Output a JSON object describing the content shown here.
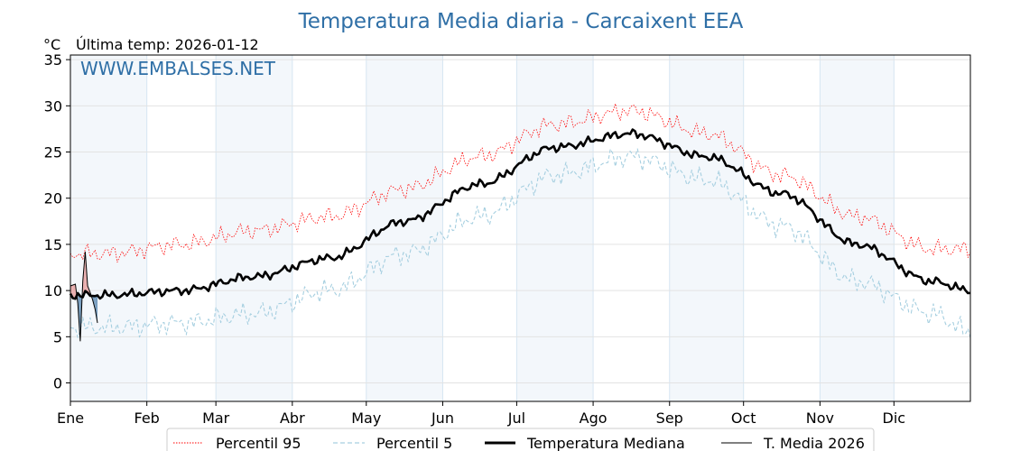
{
  "title": "Temperatura Media diaria - Carcaixent EEA",
  "unit_label": "°C",
  "last_temp_label": "Última temp: 2026-01-12",
  "watermark": "WWW.EMBALSES.NET",
  "chart_data": {
    "type": "line",
    "y_ticks": [
      0,
      5,
      10,
      15,
      20,
      25,
      30,
      35
    ],
    "ylim": [
      -2,
      35.5
    ],
    "x_tick_labels": [
      "Ene",
      "Feb",
      "Mar",
      "Abr",
      "May",
      "Jun",
      "Jul",
      "Ago",
      "Sep",
      "Oct",
      "Nov",
      "Dic"
    ],
    "month_start_days": [
      1,
      32,
      60,
      91,
      121,
      152,
      182,
      213,
      244,
      274,
      305,
      335
    ],
    "xlim": [
      1,
      366
    ],
    "grid": true,
    "legend_placement": "bottom-center",
    "series": [
      {
        "name": "Percentil 95",
        "color": "#ff0000",
        "style": "dotted",
        "monthly_values": [
          14.0,
          15.0,
          16.5,
          18.0,
          21.0,
          24.5,
          28.0,
          29.5,
          27.0,
          22.5,
          18.0,
          14.5,
          14.5
        ]
      },
      {
        "name": "Percentil 5",
        "color": "#a6cfe0",
        "style": "dashed",
        "monthly_values": [
          6.0,
          6.5,
          7.5,
          10.0,
          14.0,
          18.0,
          22.5,
          24.5,
          22.0,
          17.0,
          11.0,
          7.5,
          5.5
        ]
      },
      {
        "name": "Temperatura Mediana",
        "color": "#000000",
        "style": "thick",
        "monthly_values": [
          9.5,
          10.0,
          11.5,
          13.5,
          17.5,
          21.5,
          25.5,
          27.0,
          24.5,
          20.5,
          15.0,
          11.0,
          10.0
        ]
      },
      {
        "name": "T. Media 2026",
        "color": "#000000",
        "style": "thin",
        "days": [
          1,
          2,
          3,
          4,
          5,
          6,
          7,
          8,
          9,
          10,
          11,
          12
        ],
        "values": [
          10.5,
          10.6,
          10.7,
          8.6,
          4.5,
          11.0,
          14.2,
          10.5,
          9.8,
          9.0,
          8.0,
          6.5
        ],
        "above_median_color": "#e8a6a6",
        "below_median_color": "#6a93b8"
      }
    ]
  }
}
